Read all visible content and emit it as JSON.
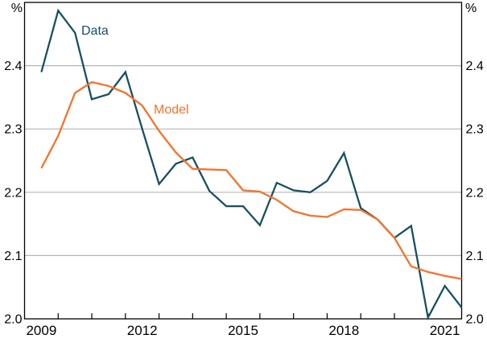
{
  "chart_data": {
    "type": "line",
    "title": "",
    "unit_left": "%",
    "unit_right": "%",
    "frequency": "semiannual",
    "x_periods": [
      "2009H1",
      "2009H2",
      "2010H1",
      "2010H2",
      "2011H1",
      "2011H2",
      "2012H1",
      "2012H2",
      "2013H1",
      "2013H2",
      "2014H1",
      "2014H2",
      "2015H1",
      "2015H2",
      "2016H1",
      "2016H2",
      "2017H1",
      "2017H2",
      "2018H1",
      "2018H2",
      "2019H1",
      "2019H2",
      "2020H1",
      "2020H2",
      "2021H1",
      "2021H2"
    ],
    "x_years_span": [
      2009,
      2022
    ],
    "x_minor_tick_years": [
      2010,
      2011,
      2012,
      2013,
      2014,
      2015,
      2016,
      2017,
      2018,
      2019,
      2020,
      2021
    ],
    "x_label_values": [
      2009,
      2012,
      2015,
      2018,
      2021
    ],
    "x_label_texts": [
      "2009",
      "2012",
      "2015",
      "2018",
      "2021"
    ],
    "ylim": [
      2.0,
      2.5
    ],
    "y_axis_values": [
      2.0,
      2.1,
      2.2,
      2.3,
      2.4
    ],
    "y_axis_labels": [
      "2.0",
      "2.1",
      "2.2",
      "2.3",
      "2.4"
    ],
    "grid_values": [
      2.1,
      2.2,
      2.3,
      2.4
    ],
    "grid": true,
    "legend_position": "inline-annotations",
    "series": [
      {
        "name": "Data",
        "color": "#17505f",
        "values": [
          2.39,
          2.487,
          2.452,
          2.347,
          2.355,
          2.39,
          2.3,
          2.213,
          2.245,
          2.255,
          2.202,
          2.178,
          2.178,
          2.148,
          2.215,
          2.203,
          2.2,
          2.218,
          2.262,
          2.175,
          2.157,
          2.128,
          2.147,
          2.002,
          2.052,
          2.018
        ]
      },
      {
        "name": "Model",
        "color": "#f5722c",
        "values": [
          2.238,
          2.289,
          2.357,
          2.374,
          2.368,
          2.357,
          2.337,
          2.297,
          2.263,
          2.237,
          2.236,
          2.235,
          2.203,
          2.201,
          2.188,
          2.17,
          2.163,
          2.161,
          2.173,
          2.172,
          2.157,
          2.128,
          2.083,
          2.074,
          2.068,
          2.063
        ]
      }
    ],
    "colors": {
      "grid": "#b6b6b6",
      "axis": "#000000",
      "text": "#000000",
      "background": "#ffffff"
    }
  }
}
